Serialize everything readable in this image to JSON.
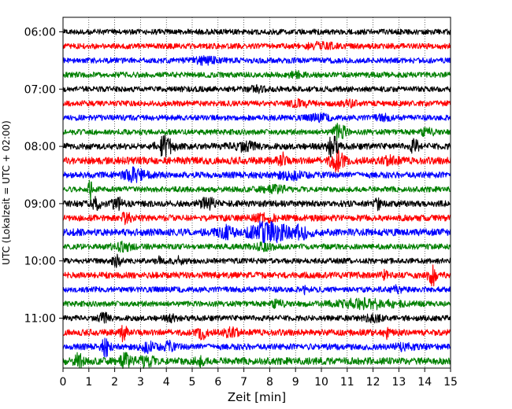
{
  "chart_data": {
    "type": "line",
    "title": "",
    "xlabel": "Zeit  [min]",
    "ylabel": "UTC (Lokalzeit = UTC + 02:00)",
    "xlim": [
      0,
      15
    ],
    "x_ticks": [
      0,
      1,
      2,
      3,
      4,
      5,
      6,
      7,
      8,
      9,
      10,
      11,
      12,
      13,
      14,
      15
    ],
    "y_tick_labels": [
      "06:00",
      "07:00",
      "08:00",
      "09:00",
      "10:00",
      "11:00"
    ],
    "vertical_grid": "dotted",
    "trace_interval_min": 15,
    "start_time": "06:00",
    "color_cycle": [
      "#000000",
      "#ff0000",
      "#0000ff",
      "#008000"
    ],
    "series": [
      {
        "start": "06:00",
        "color": "#000000",
        "amp": 3.5,
        "events": []
      },
      {
        "start": "06:15",
        "color": "#ff0000",
        "amp": 3.5,
        "events": [
          [
            10.0,
            3,
            0.6
          ]
        ]
      },
      {
        "start": "06:30",
        "color": "#0000ff",
        "amp": 3.5,
        "events": [
          [
            5.5,
            3,
            0.5
          ]
        ]
      },
      {
        "start": "06:45",
        "color": "#008000",
        "amp": 3.5,
        "events": [
          [
            9.0,
            2.5,
            0.3
          ]
        ]
      },
      {
        "start": "07:00",
        "color": "#000000",
        "amp": 3.5,
        "events": [
          [
            7.5,
            2.5,
            0.3
          ]
        ]
      },
      {
        "start": "07:15",
        "color": "#ff0000",
        "amp": 3.5,
        "events": [
          [
            9.2,
            3,
            0.4
          ],
          [
            11.1,
            2.5,
            0.3
          ]
        ]
      },
      {
        "start": "07:30",
        "color": "#0000ff",
        "amp": 3.5,
        "events": [
          [
            9.9,
            3,
            0.4
          ],
          [
            12.4,
            2.5,
            0.3
          ]
        ]
      },
      {
        "start": "07:45",
        "color": "#008000",
        "amp": 3.5,
        "events": [
          [
            10.7,
            9,
            0.25
          ],
          [
            14.1,
            3,
            0.3
          ]
        ]
      },
      {
        "start": "08:00",
        "color": "#000000",
        "amp": 4,
        "events": [
          [
            3.95,
            11,
            0.3
          ],
          [
            10.45,
            12,
            0.2
          ],
          [
            7.0,
            4,
            0.5
          ],
          [
            13.6,
            8,
            0.15
          ]
        ]
      },
      {
        "start": "08:15",
        "color": "#ff0000",
        "amp": 4.5,
        "events": [
          [
            8.5,
            7,
            0.15
          ],
          [
            10.6,
            11,
            0.25
          ],
          [
            12.7,
            4,
            0.3
          ]
        ]
      },
      {
        "start": "08:30",
        "color": "#0000ff",
        "amp": 4,
        "events": [
          [
            2.8,
            7,
            0.4
          ],
          [
            8.8,
            4,
            0.5
          ]
        ]
      },
      {
        "start": "08:45",
        "color": "#008000",
        "amp": 3.5,
        "events": [
          [
            1.05,
            15,
            0.06
          ],
          [
            8.2,
            3,
            0.5
          ]
        ]
      },
      {
        "start": "09:00",
        "color": "#000000",
        "amp": 4,
        "events": [
          [
            1.3,
            8,
            0.15
          ],
          [
            2.1,
            6,
            0.2
          ],
          [
            5.6,
            6,
            0.3
          ],
          [
            12.2,
            7,
            0.1
          ]
        ]
      },
      {
        "start": "09:15",
        "color": "#ff0000",
        "amp": 4,
        "events": [
          [
            2.45,
            8,
            0.15
          ],
          [
            7.8,
            3,
            0.4
          ]
        ]
      },
      {
        "start": "09:30",
        "color": "#0000ff",
        "amp": 4.5,
        "events": [
          [
            6.3,
            6,
            0.3
          ],
          [
            7.7,
            10,
            0.5
          ],
          [
            8.4,
            7,
            0.4
          ],
          [
            9.2,
            6,
            0.4
          ]
        ]
      },
      {
        "start": "09:45",
        "color": "#008000",
        "amp": 3.5,
        "events": [
          [
            2.3,
            4,
            0.4
          ],
          [
            7.8,
            3,
            0.4
          ]
        ]
      },
      {
        "start": "10:00",
        "color": "#000000",
        "amp": 3.5,
        "events": [
          [
            2.1,
            6,
            0.2
          ],
          [
            3.8,
            5,
            0.15
          ],
          [
            4.5,
            4,
            0.2
          ]
        ]
      },
      {
        "start": "10:15",
        "color": "#ff0000",
        "amp": 4,
        "events": [
          [
            12.5,
            6,
            0.1
          ],
          [
            14.3,
            13,
            0.15
          ]
        ]
      },
      {
        "start": "10:30",
        "color": "#0000ff",
        "amp": 3.5,
        "events": [
          [
            9.4,
            6,
            0.1
          ],
          [
            12.9,
            4,
            0.2
          ]
        ]
      },
      {
        "start": "10:45",
        "color": "#008000",
        "amp": 3.5,
        "events": [
          [
            11.7,
            5,
            1.2
          ],
          [
            8.3,
            3,
            0.3
          ]
        ]
      },
      {
        "start": "11:00",
        "color": "#000000",
        "amp": 3.5,
        "events": [
          [
            1.6,
            5,
            0.2
          ],
          [
            4.2,
            3,
            0.2
          ],
          [
            12.0,
            3,
            0.3
          ]
        ]
      },
      {
        "start": "11:15",
        "color": "#ff0000",
        "amp": 4,
        "events": [
          [
            2.35,
            11,
            0.1
          ],
          [
            5.4,
            7,
            0.15
          ],
          [
            12.5,
            6,
            0.1
          ],
          [
            6.5,
            4,
            0.3
          ]
        ]
      },
      {
        "start": "11:30",
        "color": "#0000ff",
        "amp": 4,
        "events": [
          [
            1.65,
            10,
            0.15
          ],
          [
            3.3,
            5,
            0.3
          ],
          [
            4.1,
            5,
            0.2
          ],
          [
            13.2,
            3,
            0.3
          ]
        ]
      },
      {
        "start": "11:45",
        "color": "#008000",
        "amp": 4.5,
        "events": [
          [
            0.6,
            8,
            0.15
          ],
          [
            2.4,
            7,
            0.2
          ],
          [
            3.2,
            6,
            0.3
          ],
          [
            5.3,
            4,
            0.2
          ]
        ]
      }
    ]
  }
}
